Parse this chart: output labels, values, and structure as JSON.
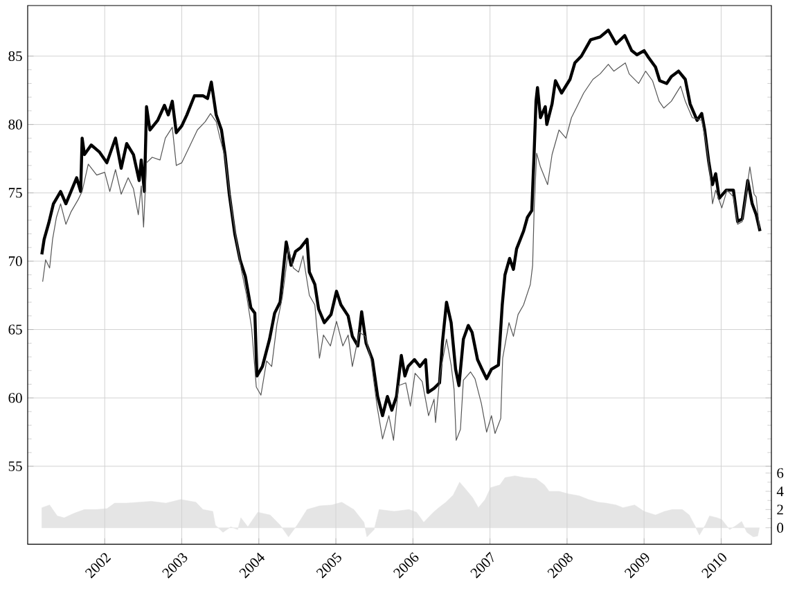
{
  "chart_data": {
    "type": "line",
    "grid": true,
    "xlim": [
      "2001-01-01",
      "2010-08-27"
    ],
    "xticks": [
      "2002",
      "2003",
      "2004",
      "2005",
      "2006",
      "2007",
      "2008",
      "2009",
      "2010"
    ],
    "ylim": [
      49.3,
      88.7
    ],
    "yticks": [
      55,
      60,
      65,
      70,
      75,
      80,
      85
    ],
    "y2lim": [
      -1.8,
      57.3
    ],
    "y2ticks": [
      0,
      2,
      4,
      6
    ],
    "series": [
      {
        "type": "area",
        "axis": "y2",
        "color": "#e5e5e5",
        "x": [
          "2001-03-09",
          "2001-04-15",
          "2001-05-21",
          "2001-06-23",
          "2001-08-10",
          "2001-09-27",
          "2001-11-24",
          "2002-01-11",
          "2002-02-17",
          "2002-04-15",
          "2002-06-13",
          "2002-08-10",
          "2002-10-18",
          "2002-12-27",
          "2003-03-09",
          "2003-04-11",
          "2003-05-28",
          "2003-06-09",
          "2003-07-15",
          "2003-08-21",
          "2003-09-23",
          "2003-10-08",
          "2003-11-10",
          "2003-12-27",
          "2004-02-24",
          "2004-04-11",
          "2004-05-21",
          "2004-07-01",
          "2004-08-17",
          "2004-10-15",
          "2004-12-13",
          "2005-01-29",
          "2005-03-27",
          "2005-05-14",
          "2005-05-28",
          "2005-07-01",
          "2005-07-25",
          "2005-10-04",
          "2005-12-13",
          "2006-01-18",
          "2006-02-21",
          "2006-04-08",
          "2006-05-03",
          "2006-06-06",
          "2006-07-11",
          "2006-08-10",
          "2006-09-09",
          "2006-10-11",
          "2006-11-07",
          "2006-12-09",
          "2007-01-04",
          "2007-02-17",
          "2007-03-13",
          "2007-04-29",
          "2007-06-13",
          "2007-08-07",
          "2007-09-16",
          "2007-10-08",
          "2007-11-24",
          "2008-01-11",
          "2008-02-28",
          "2008-04-11",
          "2008-05-28",
          "2008-07-04",
          "2008-08-21",
          "2008-09-23",
          "2008-11-17",
          "2009-01-01",
          "2009-02-24",
          "2009-04-08",
          "2009-05-14",
          "2009-07-01",
          "2009-08-03",
          "2009-08-28",
          "2009-09-20",
          "2009-10-18",
          "2009-11-07",
          "2009-12-13",
          "2010-01-04",
          "2010-02-10",
          "2010-03-16",
          "2010-04-08",
          "2010-05-03",
          "2010-06-02",
          "2010-06-23",
          "2010-07-01"
        ],
        "values": [
          2.2,
          2.5,
          1.3,
          1.1,
          1.6,
          2.0,
          2.0,
          2.1,
          2.7,
          2.7,
          2.8,
          2.9,
          2.7,
          3.1,
          2.8,
          2.0,
          1.8,
          0.3,
          -0.5,
          0.1,
          -0.2,
          1.1,
          0.1,
          1.7,
          1.4,
          0.3,
          -1.0,
          0.3,
          2.0,
          2.4,
          2.5,
          2.8,
          2.0,
          0.6,
          -1.0,
          -0.2,
          2.0,
          1.8,
          2.0,
          1.7,
          0.6,
          1.7,
          2.2,
          2.8,
          3.6,
          5.0,
          4.2,
          3.3,
          2.2,
          3.1,
          4.4,
          4.7,
          5.5,
          5.7,
          5.5,
          5.4,
          4.7,
          4.0,
          4.0,
          3.7,
          3.5,
          3.1,
          2.8,
          2.7,
          2.5,
          2.2,
          2.5,
          1.8,
          1.4,
          1.8,
          2.0,
          2.0,
          1.4,
          0.3,
          -0.8,
          0.3,
          1.3,
          1.1,
          0.9,
          -0.2,
          0.3,
          0.7,
          -0.5,
          -1.0,
          -0.9,
          0.0
        ]
      },
      {
        "color": "#000000",
        "x": [
          "2001-03-09",
          "2001-03-20",
          "2001-04-11",
          "2001-05-03",
          "2001-06-06",
          "2001-07-01",
          "2001-07-25",
          "2001-08-21",
          "2001-09-09",
          "2001-09-16",
          "2001-09-27",
          "2001-10-29",
          "2001-12-06",
          "2002-01-11",
          "2002-02-21",
          "2002-03-20",
          "2002-04-15",
          "2002-05-17",
          "2002-06-13",
          "2002-06-23",
          "2002-07-08",
          "2002-07-18",
          "2002-08-03",
          "2002-09-09",
          "2002-10-11",
          "2002-10-29",
          "2002-11-17",
          "2002-12-06",
          "2003-01-01",
          "2003-01-25",
          "2003-03-02",
          "2003-04-11",
          "2003-05-03",
          "2003-05-21",
          "2003-06-13",
          "2003-07-08",
          "2003-07-25",
          "2003-08-14",
          "2003-09-09",
          "2003-10-04",
          "2003-10-29",
          "2003-11-24",
          "2003-12-13",
          "2003-12-23",
          "2004-01-18",
          "2004-02-21",
          "2004-03-16",
          "2004-04-11",
          "2004-05-10",
          "2004-06-02",
          "2004-06-23",
          "2004-07-18",
          "2004-08-17",
          "2004-08-28",
          "2004-09-23",
          "2004-10-11",
          "2004-11-07",
          "2004-12-09",
          "2005-01-04",
          "2005-01-25",
          "2005-02-28",
          "2005-03-20",
          "2005-04-15",
          "2005-05-03",
          "2005-05-24",
          "2005-06-23",
          "2005-07-18",
          "2005-08-10",
          "2005-09-02",
          "2005-09-23",
          "2005-10-15",
          "2005-11-07",
          "2005-11-24",
          "2005-12-09",
          "2006-01-08",
          "2006-02-03",
          "2006-03-02",
          "2006-03-13",
          "2006-04-11",
          "2006-05-07",
          "2006-05-21",
          "2006-06-09",
          "2006-07-01",
          "2006-07-22",
          "2006-08-07",
          "2006-08-28",
          "2006-09-20",
          "2006-10-08",
          "2006-11-03",
          "2006-11-24",
          "2006-12-16",
          "2007-01-08",
          "2007-02-10",
          "2007-02-28",
          "2007-03-13",
          "2007-04-04",
          "2007-04-22",
          "2007-05-07",
          "2007-06-09",
          "2007-06-27",
          "2007-07-18",
          "2007-07-29",
          "2007-08-07",
          "2007-08-14",
          "2007-08-28",
          "2007-09-20",
          "2007-09-27",
          "2007-10-22",
          "2007-11-07",
          "2007-12-06",
          "2008-01-15",
          "2008-02-07",
          "2008-03-09",
          "2008-04-22",
          "2008-06-06",
          "2008-07-15",
          "2008-08-21",
          "2008-10-01",
          "2008-11-03",
          "2008-11-28",
          "2009-01-01",
          "2009-01-22",
          "2009-02-24",
          "2009-03-16",
          "2009-04-18",
          "2009-05-10",
          "2009-06-13",
          "2009-07-15",
          "2009-08-07",
          "2009-09-09",
          "2009-10-01",
          "2009-10-15",
          "2009-11-03",
          "2009-11-21",
          "2009-12-06",
          "2009-12-23",
          "2010-01-25",
          "2010-02-28",
          "2010-03-20",
          "2010-04-11",
          "2010-05-07",
          "2010-05-28",
          "2010-06-16",
          "2010-07-04"
        ],
        "values": [
          70.5,
          71.6,
          72.8,
          74.2,
          75.1,
          74.2,
          75.1,
          76.1,
          75.1,
          79.0,
          77.8,
          78.5,
          78.0,
          77.2,
          79.0,
          76.8,
          78.6,
          77.8,
          75.9,
          77.4,
          75.1,
          81.3,
          79.6,
          80.3,
          81.4,
          80.7,
          81.7,
          79.4,
          79.9,
          80.7,
          82.1,
          82.1,
          81.9,
          83.1,
          80.7,
          79.6,
          77.8,
          74.9,
          72.0,
          70.1,
          68.9,
          66.6,
          66.2,
          61.6,
          62.3,
          64.3,
          66.2,
          67.0,
          71.4,
          69.7,
          70.7,
          71.0,
          71.6,
          69.2,
          68.3,
          66.5,
          65.5,
          66.1,
          67.8,
          66.8,
          66.0,
          64.5,
          63.8,
          66.3,
          64.0,
          62.8,
          60.1,
          58.7,
          60.1,
          59.1,
          60.1,
          63.1,
          61.6,
          62.3,
          62.8,
          62.3,
          62.8,
          60.4,
          60.7,
          61.1,
          64.1,
          67.0,
          65.5,
          62.1,
          60.9,
          64.3,
          65.3,
          64.8,
          62.8,
          62.1,
          61.4,
          62.1,
          62.4,
          66.8,
          69.0,
          70.2,
          69.4,
          70.9,
          72.2,
          73.2,
          73.7,
          77.9,
          81.7,
          82.7,
          80.5,
          81.3,
          80.0,
          81.5,
          83.2,
          82.3,
          83.3,
          84.5,
          85.0,
          86.2,
          86.4,
          86.9,
          85.9,
          86.5,
          85.4,
          85.1,
          85.4,
          84.9,
          84.2,
          83.2,
          83.0,
          83.5,
          83.9,
          83.3,
          81.5,
          80.3,
          80.8,
          79.6,
          77.3,
          75.6,
          76.4,
          74.6,
          75.2,
          75.2,
          72.9,
          73.1,
          75.9,
          74.2,
          73.4,
          72.2
        ]
      },
      {
        "color": "#555555",
        "x": [
          "2001-03-13",
          "2001-03-27",
          "2001-04-15",
          "2001-04-29",
          "2001-05-17",
          "2001-06-06",
          "2001-07-01",
          "2001-07-25",
          "2001-08-28",
          "2001-09-16",
          "2001-10-15",
          "2001-11-24",
          "2002-01-01",
          "2002-01-25",
          "2002-02-21",
          "2002-03-20",
          "2002-04-22",
          "2002-05-17",
          "2002-06-09",
          "2002-06-23",
          "2002-07-04",
          "2002-07-18",
          "2002-08-14",
          "2002-09-20",
          "2002-10-15",
          "2002-11-17",
          "2002-12-06",
          "2003-01-01",
          "2003-02-07",
          "2003-03-16",
          "2003-04-22",
          "2003-05-17",
          "2003-06-13",
          "2003-07-01",
          "2003-07-25",
          "2003-08-21",
          "2003-09-16",
          "2003-10-11",
          "2003-11-03",
          "2003-11-28",
          "2003-12-20",
          "2004-01-11",
          "2004-02-07",
          "2004-03-02",
          "2004-03-27",
          "2004-04-22",
          "2004-05-21",
          "2004-06-13",
          "2004-07-08",
          "2004-07-29",
          "2004-08-28",
          "2004-09-23",
          "2004-10-15",
          "2004-11-03",
          "2004-12-06",
          "2005-01-04",
          "2005-02-03",
          "2005-02-28",
          "2005-03-20",
          "2005-04-22",
          "2005-05-21",
          "2005-06-16",
          "2005-07-15",
          "2005-08-10",
          "2005-09-09",
          "2005-10-01",
          "2005-10-25",
          "2005-11-28",
          "2005-12-20",
          "2006-01-11",
          "2006-02-14",
          "2006-03-16",
          "2006-04-11",
          "2006-04-18",
          "2006-05-10",
          "2006-06-09",
          "2006-07-01",
          "2006-07-15",
          "2006-07-25",
          "2006-08-14",
          "2006-08-28",
          "2006-10-01",
          "2006-10-22",
          "2006-11-21",
          "2006-12-16",
          "2007-01-08",
          "2007-01-25",
          "2007-02-21",
          "2007-03-02",
          "2007-04-01",
          "2007-04-22",
          "2007-05-14",
          "2007-06-09",
          "2007-07-11",
          "2007-07-22",
          "2007-07-29",
          "2007-08-10",
          "2007-08-28",
          "2007-10-01",
          "2007-10-22",
          "2007-11-24",
          "2007-12-27",
          "2008-01-22",
          "2008-02-17",
          "2008-03-20",
          "2008-05-03",
          "2008-06-06",
          "2008-07-15",
          "2008-08-10",
          "2008-10-04",
          "2008-10-22",
          "2008-12-06",
          "2009-01-08",
          "2009-02-10",
          "2009-03-13",
          "2009-04-04",
          "2009-05-10",
          "2009-06-23",
          "2009-07-15",
          "2009-08-17",
          "2009-10-01",
          "2009-10-22",
          "2009-11-10",
          "2009-11-21",
          "2009-12-06",
          "2010-01-04",
          "2010-01-29",
          "2010-02-28",
          "2010-03-20",
          "2010-04-11",
          "2010-05-17",
          "2010-06-06",
          "2010-06-16",
          "2010-07-01"
        ],
        "values": [
          68.5,
          70.1,
          69.5,
          71.6,
          73.2,
          74.2,
          72.7,
          73.6,
          74.5,
          75.1,
          77.1,
          76.3,
          76.5,
          75.1,
          76.7,
          74.9,
          76.1,
          75.3,
          73.4,
          75.5,
          72.5,
          77.2,
          77.6,
          77.4,
          79.0,
          79.8,
          77.0,
          77.2,
          78.4,
          79.6,
          80.2,
          80.8,
          80.2,
          79.0,
          77.6,
          74.3,
          71.6,
          69.3,
          67.6,
          65.1,
          60.8,
          60.2,
          62.7,
          62.3,
          65.4,
          67.4,
          70.9,
          69.5,
          69.2,
          70.4,
          67.5,
          66.8,
          62.9,
          64.6,
          63.8,
          65.6,
          63.8,
          64.6,
          62.3,
          64.8,
          64.5,
          62.8,
          59.4,
          57.0,
          58.7,
          56.9,
          60.9,
          61.1,
          59.4,
          61.8,
          61.2,
          58.7,
          59.9,
          58.2,
          61.8,
          64.3,
          62.4,
          60.6,
          56.9,
          57.7,
          61.3,
          61.9,
          61.4,
          59.6,
          57.5,
          58.7,
          57.4,
          58.5,
          62.9,
          65.5,
          64.5,
          66.1,
          66.8,
          68.3,
          69.7,
          73.7,
          77.9,
          76.9,
          75.6,
          77.8,
          79.6,
          79.0,
          80.5,
          81.3,
          82.3,
          83.3,
          83.7,
          84.4,
          83.9,
          84.5,
          83.7,
          83.0,
          83.9,
          83.2,
          81.7,
          81.2,
          81.7,
          82.8,
          81.7,
          80.5,
          80.3,
          78.6,
          76.3,
          74.2,
          75.2,
          73.9,
          75.2,
          74.7,
          72.7,
          72.9,
          76.9,
          74.9,
          74.7,
          72.4
        ]
      }
    ]
  }
}
